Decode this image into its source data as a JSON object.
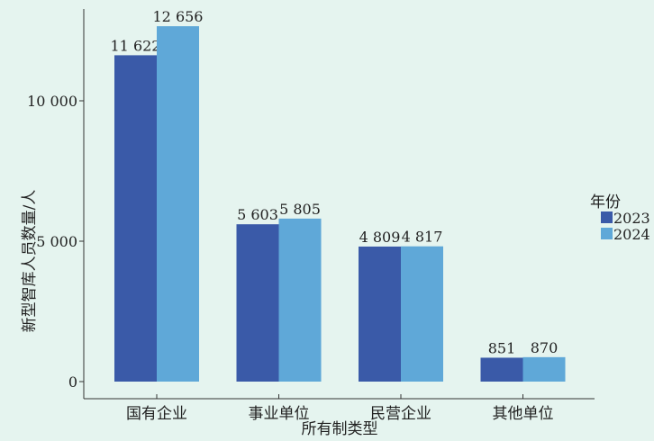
{
  "chart_data": {
    "type": "bar",
    "title": "",
    "xlabel": "所有制类型",
    "ylabel": "新型智库人员数量/人",
    "categories": [
      "国有企业",
      "事业单位",
      "民营企业",
      "其他单位"
    ],
    "series": [
      {
        "name": "2023",
        "values": [
          11622,
          5603,
          4809,
          851
        ],
        "labels": [
          "11 622",
          "5 603",
          "4 809",
          "851"
        ],
        "color": "#3a5aa8"
      },
      {
        "name": "2024",
        "values": [
          12656,
          5805,
          4817,
          870
        ],
        "labels": [
          "12 656",
          "5 805",
          "4 817",
          "870"
        ],
        "color": "#5fa8d8"
      }
    ],
    "yticks": [
      0,
      5000,
      10000
    ],
    "ytick_labels": [
      "0",
      "5 000",
      "10 000"
    ],
    "ylim": [
      -600,
      13250
    ],
    "grid": false,
    "legend_title": "年份",
    "legend_position": "right"
  }
}
